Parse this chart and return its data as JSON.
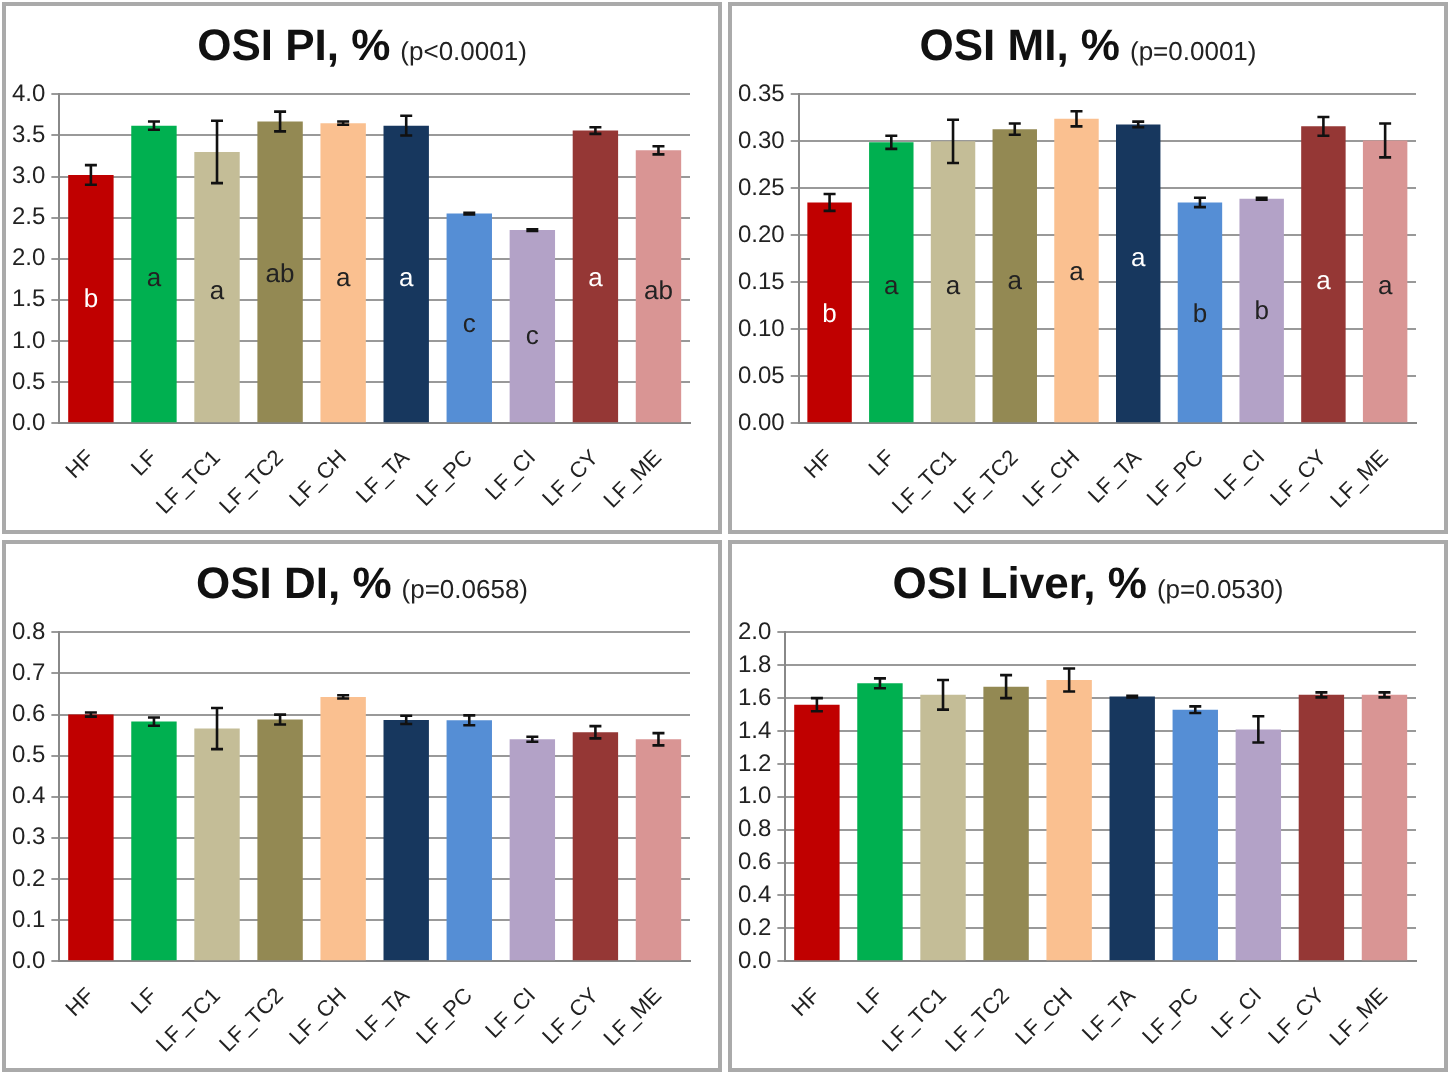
{
  "chart_data": [
    {
      "type": "bar",
      "title": "OSI PI, %",
      "subtitle": "(p<0.0001)",
      "categories": [
        "HF",
        "LF",
        "LF_TC1",
        "LF_TC2",
        "LF_CH",
        "LF_TA",
        "LF_PC",
        "LF_CI",
        "LF_CY",
        "LF_ME"
      ],
      "values": [
        3.02,
        3.62,
        3.3,
        3.67,
        3.65,
        3.62,
        2.55,
        2.35,
        3.56,
        3.32
      ],
      "errors": [
        0.12,
        0.05,
        0.38,
        0.12,
        0.02,
        0.12,
        0.01,
        0.01,
        0.04,
        0.05
      ],
      "colors": [
        "#c00000",
        "#00b050",
        "#c4bd97",
        "#938953",
        "#fac090",
        "#17375e",
        "#558ed5",
        "#b3a2c7",
        "#953735",
        "#d99594"
      ],
      "annotations": [
        {
          "text": "b",
          "x": "HF",
          "y": 1.5
        },
        {
          "text": "a",
          "x": "LF",
          "y": 1.75
        },
        {
          "text": "a",
          "x": "LF_TC1",
          "y": 1.6
        },
        {
          "text": "ab",
          "x": "LF_TC2",
          "y": 1.8
        },
        {
          "text": "a",
          "x": "LF_CH",
          "y": 1.75
        },
        {
          "text": "a",
          "x": "LF_TA",
          "y": 1.75
        },
        {
          "text": "c",
          "x": "LF_PC",
          "y": 1.2
        },
        {
          "text": "c",
          "x": "LF_CI",
          "y": 1.05
        },
        {
          "text": "a",
          "x": "LF_CY",
          "y": 1.75
        },
        {
          "text": "ab",
          "x": "LF_ME",
          "y": 1.6
        }
      ],
      "ylim": [
        0,
        4
      ],
      "yticks": [
        {
          "value": 0,
          "label": "0.0"
        },
        {
          "value": 0.5,
          "label": "0.5"
        },
        {
          "value": 1,
          "label": "1.0"
        },
        {
          "value": 1.5,
          "label": "1.5"
        },
        {
          "value": 2,
          "label": "2.0"
        },
        {
          "value": 2.5,
          "label": "2.5"
        },
        {
          "value": 3,
          "label": "3.0"
        },
        {
          "value": 3.5,
          "label": "3.5"
        },
        {
          "value": 4,
          "label": "4.0"
        }
      ],
      "grid": "y"
    },
    {
      "type": "bar",
      "title": "OSI MI, %",
      "subtitle": "(p=0.0001)",
      "categories": [
        "HF",
        "LF",
        "LF_TC1",
        "LF_TC2",
        "LF_CH",
        "LF_TA",
        "LF_PC",
        "LF_CI",
        "LF_CY",
        "LF_ME"
      ],
      "values": [
        0.235,
        0.299,
        0.3,
        0.313,
        0.324,
        0.318,
        0.235,
        0.239,
        0.316,
        0.301
      ],
      "errors": [
        0.009,
        0.007,
        0.023,
        0.006,
        0.008,
        0.003,
        0.005,
        0.001,
        0.01,
        0.018
      ],
      "colors": [
        "#c00000",
        "#00b050",
        "#c4bd97",
        "#938953",
        "#fac090",
        "#17375e",
        "#558ed5",
        "#b3a2c7",
        "#953735",
        "#d99594"
      ],
      "annotations": [
        {
          "text": "b",
          "x": "HF",
          "y": 0.115
        },
        {
          "text": "a",
          "x": "LF",
          "y": 0.145
        },
        {
          "text": "a",
          "x": "LF_TC1",
          "y": 0.145
        },
        {
          "text": "a",
          "x": "LF_TC2",
          "y": 0.15
        },
        {
          "text": "a",
          "x": "LF_CH",
          "y": 0.16
        },
        {
          "text": "a",
          "x": "LF_TA",
          "y": 0.175
        },
        {
          "text": "b",
          "x": "LF_PC",
          "y": 0.115
        },
        {
          "text": "b",
          "x": "LF_CI",
          "y": 0.118
        },
        {
          "text": "a",
          "x": "LF_CY",
          "y": 0.15
        },
        {
          "text": "a",
          "x": "LF_ME",
          "y": 0.145
        }
      ],
      "ylim": [
        0,
        0.35
      ],
      "yticks": [
        {
          "value": 0,
          "label": "0.00"
        },
        {
          "value": 0.05,
          "label": "0.05"
        },
        {
          "value": 0.1,
          "label": "0.10"
        },
        {
          "value": 0.15,
          "label": "0.15"
        },
        {
          "value": 0.2,
          "label": "0.20"
        },
        {
          "value": 0.25,
          "label": "0.25"
        },
        {
          "value": 0.3,
          "label": "0.30"
        },
        {
          "value": 0.35,
          "label": "0.35"
        }
      ],
      "grid": "y"
    },
    {
      "type": "bar",
      "title": "OSI DI, %",
      "subtitle": "(p=0.0658)",
      "categories": [
        "HF",
        "LF",
        "LF_TC1",
        "LF_TC2",
        "LF_CH",
        "LF_TA",
        "LF_PC",
        "LF_CI",
        "LF_CY",
        "LF_ME"
      ],
      "values": [
        0.6,
        0.583,
        0.566,
        0.588,
        0.643,
        0.587,
        0.586,
        0.54,
        0.557,
        0.54
      ],
      "errors": [
        0.005,
        0.01,
        0.05,
        0.012,
        0.004,
        0.01,
        0.012,
        0.006,
        0.015,
        0.015
      ],
      "colors": [
        "#c00000",
        "#00b050",
        "#c4bd97",
        "#938953",
        "#fac090",
        "#17375e",
        "#558ed5",
        "#b3a2c7",
        "#953735",
        "#d99594"
      ],
      "ylim": [
        0,
        0.8
      ],
      "yticks": [
        {
          "value": 0,
          "label": "0.0"
        },
        0.1,
        0.2,
        0.3,
        0.4,
        0.5,
        0.6,
        0.7,
        0.8
      ],
      "grid": "y"
    },
    {
      "type": "bar",
      "title": "OSI Liver, %",
      "subtitle": "(p=0.0530)",
      "categories": [
        "HF",
        "LF",
        "LF_TC1",
        "LF_TC2",
        "LF_CH",
        "LF_TA",
        "LF_PC",
        "LF_CI",
        "LF_CY",
        "LF_ME"
      ],
      "values": [
        1.56,
        1.69,
        1.62,
        1.67,
        1.71,
        1.61,
        1.53,
        1.41,
        1.62,
        1.62
      ],
      "errors": [
        0.04,
        0.03,
        0.09,
        0.07,
        0.07,
        0.005,
        0.02,
        0.08,
        0.015,
        0.015
      ],
      "colors": [
        "#c00000",
        "#00b050",
        "#c4bd97",
        "#938953",
        "#fac090",
        "#17375e",
        "#558ed5",
        "#b3a2c7",
        "#953735",
        "#d99594"
      ],
      "ylim": [
        0,
        2
      ],
      "yticks": [
        {
          "value": 0,
          "label": "0.0"
        },
        0.2,
        0.4,
        0.6,
        0.8,
        {
          "value": 1,
          "label": "1.0"
        },
        1.2,
        1.4,
        1.6,
        1.8,
        {
          "value": 2,
          "label": "2.0"
        }
      ],
      "grid": "y"
    }
  ]
}
